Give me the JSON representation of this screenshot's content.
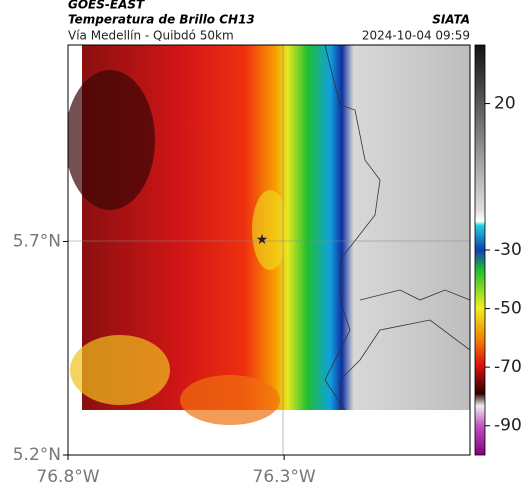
{
  "header": {
    "title": "GOES-EAST",
    "subtitle": "Temperatura de Brillo CH13",
    "route": "Vía Medellín - Quibdó 50km",
    "source": "SIATA",
    "timestamp": "2024-10-04 09:59"
  },
  "map": {
    "xlim": [
      -76.8,
      -75.87
    ],
    "ylim": [
      5.2,
      6.16
    ],
    "xticks": [
      {
        "value": -76.8,
        "label": "76.8°W"
      },
      {
        "value": -76.3,
        "label": "76.3°W"
      }
    ],
    "yticks": [
      {
        "value": 5.7,
        "label": "5.7°N"
      },
      {
        "value": 5.2,
        "label": "5.2°N"
      }
    ]
  },
  "colorbar": {
    "lim": [
      -100,
      40
    ],
    "ticks": [
      20,
      -30,
      -50,
      -70,
      -90
    ]
  }
}
